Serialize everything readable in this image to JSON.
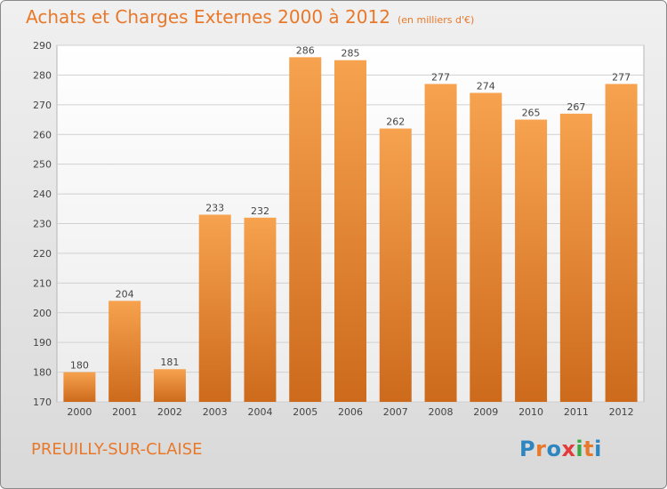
{
  "header": {
    "title": "Achats et Charges Externes 2000 à 2012",
    "subtitle": "(en milliers d'€)"
  },
  "footer": {
    "commune": "PREUILLY-SUR-CLAISE",
    "logo_text": "Proxiti",
    "logo_colors": [
      "#2e86c1",
      "#e8782a",
      "#2e86c1",
      "#e23b3b",
      "#3aa845",
      "#e8782a",
      "#2e86c1"
    ]
  },
  "colors": {
    "bar_top": "#f6a24e",
    "bar_bottom": "#cd6a1c",
    "accent": "#e8782a"
  },
  "chart_data": {
    "type": "bar",
    "categories": [
      "2000",
      "2001",
      "2002",
      "2003",
      "2004",
      "2005",
      "2006",
      "2007",
      "2008",
      "2009",
      "2010",
      "2011",
      "2012"
    ],
    "values": [
      180,
      204,
      181,
      233,
      232,
      286,
      285,
      262,
      277,
      274,
      265,
      267,
      277
    ],
    "title": "Achats et Charges Externes 2000 à 2012",
    "ylim": [
      170,
      290
    ],
    "yticks": [
      170,
      180,
      190,
      200,
      210,
      220,
      230,
      240,
      250,
      260,
      270,
      280,
      290
    ],
    "grid": true
  }
}
